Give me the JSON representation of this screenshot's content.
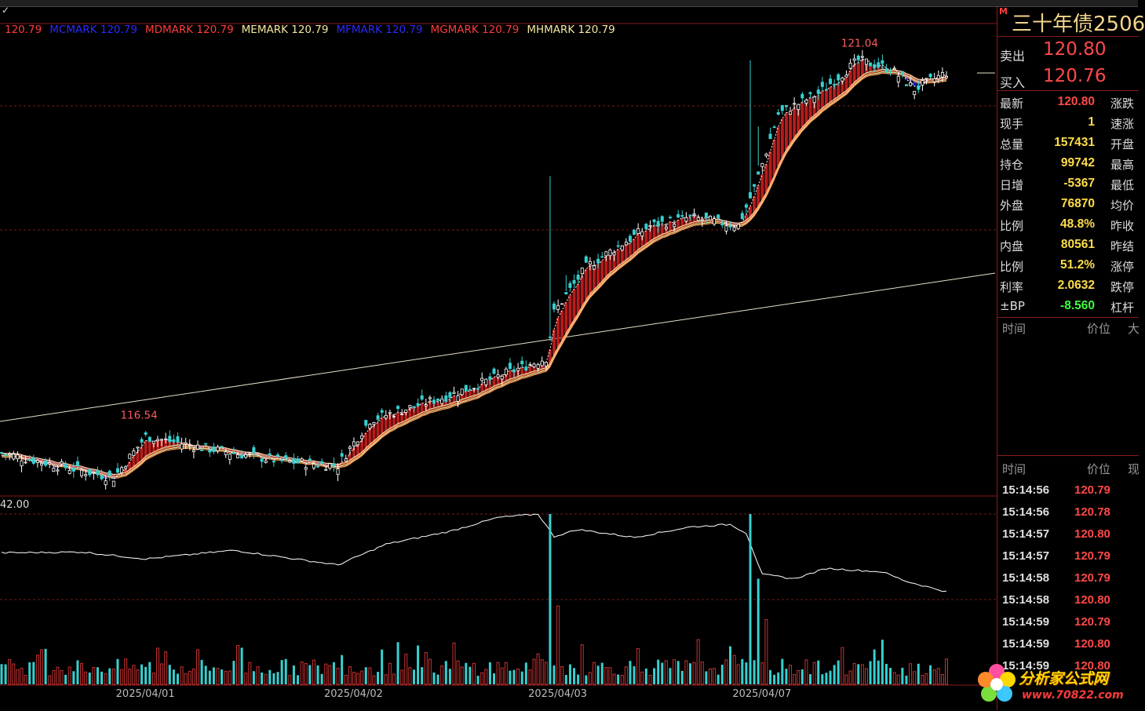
{
  "legend": [
    {
      "text": "120.79",
      "color": "#ff3b3b"
    },
    {
      "text": "MCMARK 120.79",
      "color": "#2a2aff"
    },
    {
      "text": "MDMARK 120.79",
      "color": "#ff3b3b"
    },
    {
      "text": "MEMARK 120.79",
      "color": "#f2e6a0"
    },
    {
      "text": "MFMARK 120.79",
      "color": "#2a2aff"
    },
    {
      "text": "MGMARK 120.79",
      "color": "#ff3b3b"
    },
    {
      "text": "MHMARK 120.79",
      "color": "#f2e6a0"
    }
  ],
  "panel": {
    "badge": "M",
    "title": "三十年债2506",
    "sell_label": "卖出",
    "sell_value": "120.80",
    "buy_label": "买入",
    "buy_value": "120.76",
    "stats": [
      {
        "label": "最新",
        "value": "120.80",
        "color": "#ff4848",
        "label2": "涨跌"
      },
      {
        "label": "现手",
        "value": "1",
        "color": "#ffdc4a",
        "label2": "速涨"
      },
      {
        "label": "总量",
        "value": "157431",
        "color": "#ffdc4a",
        "label2": "开盘"
      },
      {
        "label": "持仓",
        "value": "99742",
        "color": "#ffdc4a",
        "label2": "最高"
      },
      {
        "label": "日增",
        "value": "-5367",
        "color": "#ffdc4a",
        "label2": "最低"
      },
      {
        "label": "外盘",
        "value": "76870",
        "color": "#ffdc4a",
        "label2": "均价"
      },
      {
        "label": "比例",
        "value": "48.8%",
        "color": "#ffdc4a",
        "label2": "昨收"
      },
      {
        "label": "内盘",
        "value": "80561",
        "color": "#ffdc4a",
        "label2": "昨结"
      },
      {
        "label": "比例",
        "value": "51.2%",
        "color": "#ffdc4a",
        "label2": "涨停"
      },
      {
        "label": "利率",
        "value": "2.0632",
        "color": "#ffdc4a",
        "label2": "跌停"
      },
      {
        "label": "±BP",
        "value": "-8.560",
        "color": "#3cff3c",
        "label2": "杠杆"
      }
    ],
    "header1": {
      "time": "时间",
      "price": "价位",
      "extra": "大"
    },
    "header2": {
      "time": "时间",
      "price": "价位",
      "extra": "现"
    },
    "ticks": [
      {
        "time": "15:14:56",
        "price": "120.79",
        "color": "#ff4848"
      },
      {
        "time": "15:14:56",
        "price": "120.78",
        "color": "#ff4848"
      },
      {
        "time": "15:14:57",
        "price": "120.80",
        "color": "#ff4848"
      },
      {
        "time": "15:14:57",
        "price": "120.79",
        "color": "#ff4848"
      },
      {
        "time": "15:14:58",
        "price": "120.79",
        "color": "#ff4848"
      },
      {
        "time": "15:14:58",
        "price": "120.80",
        "color": "#ff4848"
      },
      {
        "time": "15:14:59",
        "price": "120.79",
        "color": "#ff4848"
      },
      {
        "time": "15:14:59",
        "price": "120.80",
        "color": "#ff4848"
      },
      {
        "time": "15:14:59",
        "price": "120.80",
        "color": "#ff4848"
      }
    ]
  },
  "watermark": {
    "text": "分析家公式网",
    "url": "www.70822.com"
  },
  "chart_data": {
    "type": "line",
    "dates": [
      "2025/04/01",
      "2025/04/02",
      "2025/04/03",
      "2025/04/07"
    ],
    "annotations": [
      {
        "text": "116.54",
        "value": 116.54,
        "bar": 34
      },
      {
        "text": "121.04",
        "value": 121.04,
        "bar": 214
      }
    ],
    "price_anchors": [
      {
        "bar": 0,
        "value": 116.2
      },
      {
        "bar": 28,
        "value": 115.9
      },
      {
        "bar": 36,
        "value": 116.4
      },
      {
        "bar": 52,
        "value": 116.25
      },
      {
        "bar": 70,
        "value": 116.1
      },
      {
        "bar": 84,
        "value": 116.05
      },
      {
        "bar": 92,
        "value": 116.6
      },
      {
        "bar": 112,
        "value": 116.9
      },
      {
        "bar": 136,
        "value": 117.35
      },
      {
        "bar": 138,
        "value": 117.9
      },
      {
        "bar": 146,
        "value": 118.45
      },
      {
        "bar": 162,
        "value": 118.95
      },
      {
        "bar": 172,
        "value": 119.05
      },
      {
        "bar": 184,
        "value": 118.95
      },
      {
        "bar": 188,
        "value": 119.4
      },
      {
        "bar": 194,
        "value": 120.3
      },
      {
        "bar": 204,
        "value": 120.55
      },
      {
        "bar": 214,
        "value": 120.95
      },
      {
        "bar": 222,
        "value": 120.85
      },
      {
        "bar": 228,
        "value": 120.6
      },
      {
        "bar": 236,
        "value": 120.8
      }
    ],
    "price_gridlines": [
      120.4,
      118.9
    ],
    "price_range": [
      115.7,
      121.3
    ],
    "oi_label": "42.00",
    "oi_anchors": [
      {
        "bar": 0,
        "value": 0.55
      },
      {
        "bar": 20,
        "value": 0.56
      },
      {
        "bar": 36,
        "value": 0.48
      },
      {
        "bar": 58,
        "value": 0.58
      },
      {
        "bar": 84,
        "value": 0.41
      },
      {
        "bar": 96,
        "value": 0.65
      },
      {
        "bar": 112,
        "value": 0.8
      },
      {
        "bar": 124,
        "value": 0.96
      },
      {
        "bar": 134,
        "value": 1.0
      },
      {
        "bar": 138,
        "value": 0.74
      },
      {
        "bar": 144,
        "value": 0.82
      },
      {
        "bar": 158,
        "value": 0.73
      },
      {
        "bar": 172,
        "value": 0.85
      },
      {
        "bar": 182,
        "value": 0.88
      },
      {
        "bar": 186,
        "value": 0.78
      },
      {
        "bar": 190,
        "value": 0.3
      },
      {
        "bar": 198,
        "value": 0.25
      },
      {
        "bar": 206,
        "value": 0.37
      },
      {
        "bar": 220,
        "value": 0.33
      },
      {
        "bar": 226,
        "value": 0.22
      },
      {
        "bar": 236,
        "value": 0.1
      }
    ],
    "volume_spikes": [
      {
        "bar": 137,
        "value": 1.0
      },
      {
        "bar": 139,
        "value": 0.46
      },
      {
        "bar": 187,
        "value": 1.0
      },
      {
        "bar": 189,
        "value": 0.62
      },
      {
        "bar": 191,
        "value": 0.38
      }
    ]
  }
}
